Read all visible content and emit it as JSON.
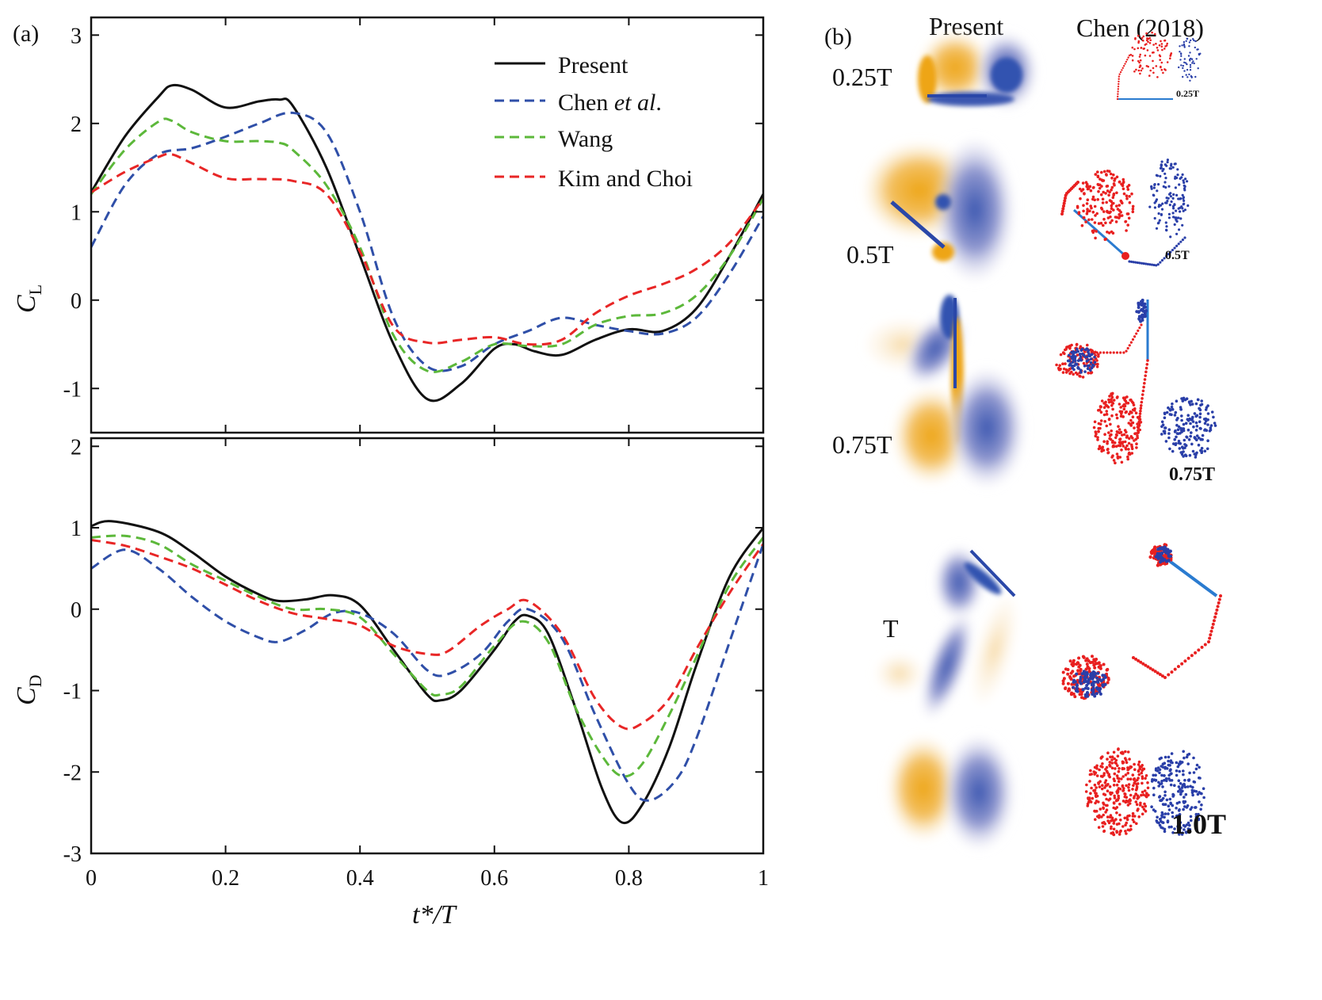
{
  "panel_a_label": "(a)",
  "panel_b_label": "(b)",
  "chart_data": [
    {
      "type": "line",
      "id": "lift",
      "title": "",
      "xlabel": "t*/T",
      "ylabel": "C",
      "ylabel_sub": "L",
      "xlim": [
        0,
        1
      ],
      "ylim": [
        -1.5,
        3.2
      ],
      "yticks": [
        "3",
        "2",
        "1",
        "0",
        "-1"
      ],
      "ytick_values": [
        3,
        2,
        1,
        0,
        -1
      ],
      "xticks": [
        "0",
        "0.2",
        "0.4",
        "0.6",
        "0.8",
        "1"
      ],
      "xtick_values": [
        0,
        0.2,
        0.4,
        0.6,
        0.8,
        1
      ],
      "legend": {
        "placement": "top-right",
        "entries": [
          {
            "name_parts": [
              "Present"
            ]
          },
          {
            "name_parts": [
              "Chen ",
              "et al",
              "."
            ]
          },
          {
            "name_parts": [
              "Wang"
            ]
          },
          {
            "name_parts": [
              "Kim and Choi"
            ]
          }
        ]
      },
      "series": [
        {
          "name": "Present",
          "color": "#111111",
          "dash": "solid",
          "x": [
            0,
            0.05,
            0.1,
            0.12,
            0.15,
            0.2,
            0.25,
            0.28,
            0.3,
            0.35,
            0.4,
            0.45,
            0.5,
            0.55,
            0.6,
            0.63,
            0.66,
            0.7,
            0.75,
            0.8,
            0.85,
            0.9,
            0.95,
            1
          ],
          "y": [
            1.22,
            1.85,
            2.3,
            2.43,
            2.38,
            2.18,
            2.25,
            2.27,
            2.2,
            1.5,
            0.5,
            -0.5,
            -1.12,
            -0.95,
            -0.55,
            -0.5,
            -0.58,
            -0.62,
            -0.45,
            -0.33,
            -0.35,
            -0.1,
            0.5,
            1.2
          ]
        },
        {
          "name": "Chen et al.",
          "color": "#2f4fa8",
          "dash": "dashed",
          "x": [
            0,
            0.05,
            0.1,
            0.15,
            0.2,
            0.25,
            0.3,
            0.35,
            0.4,
            0.45,
            0.5,
            0.55,
            0.6,
            0.65,
            0.7,
            0.75,
            0.8,
            0.85,
            0.9,
            0.95,
            1
          ],
          "y": [
            0.6,
            1.3,
            1.65,
            1.72,
            1.85,
            2.0,
            2.12,
            1.9,
            1.0,
            -0.2,
            -0.75,
            -0.75,
            -0.5,
            -0.35,
            -0.2,
            -0.28,
            -0.35,
            -0.38,
            -0.2,
            0.3,
            0.95
          ]
        },
        {
          "name": "Wang",
          "color": "#5cb83a",
          "dash": "dashed",
          "x": [
            0,
            0.05,
            0.1,
            0.12,
            0.15,
            0.2,
            0.25,
            0.28,
            0.3,
            0.35,
            0.4,
            0.45,
            0.5,
            0.55,
            0.6,
            0.65,
            0.7,
            0.75,
            0.8,
            0.85,
            0.9,
            0.95,
            1
          ],
          "y": [
            1.2,
            1.7,
            2.02,
            2.03,
            1.9,
            1.8,
            1.8,
            1.78,
            1.7,
            1.3,
            0.6,
            -0.4,
            -0.8,
            -0.7,
            -0.5,
            -0.52,
            -0.5,
            -0.28,
            -0.18,
            -0.15,
            0.05,
            0.5,
            1.15
          ]
        },
        {
          "name": "Kim and Choi",
          "color": "#e82626",
          "dash": "dashed",
          "x": [
            0,
            0.05,
            0.1,
            0.12,
            0.15,
            0.2,
            0.25,
            0.3,
            0.35,
            0.4,
            0.45,
            0.5,
            0.55,
            0.6,
            0.65,
            0.7,
            0.75,
            0.8,
            0.85,
            0.9,
            0.95,
            1
          ],
          "y": [
            1.22,
            1.45,
            1.62,
            1.65,
            1.55,
            1.38,
            1.37,
            1.35,
            1.2,
            0.55,
            -0.3,
            -0.48,
            -0.45,
            -0.42,
            -0.5,
            -0.45,
            -0.15,
            0.05,
            0.18,
            0.35,
            0.65,
            1.15
          ]
        }
      ]
    },
    {
      "type": "line",
      "id": "drag",
      "title": "",
      "xlabel": "t*/T",
      "ylabel": "C",
      "ylabel_sub": "D",
      "xlim": [
        0,
        1
      ],
      "ylim": [
        -3,
        2.1
      ],
      "yticks": [
        "2",
        "1",
        "0",
        "-1",
        "-2",
        "-3"
      ],
      "ytick_values": [
        2,
        1,
        0,
        -1,
        -2,
        -3
      ],
      "xticks": [
        "0",
        "0.2",
        "0.4",
        "0.6",
        "0.8",
        "1"
      ],
      "xtick_values": [
        0,
        0.2,
        0.4,
        0.6,
        0.8,
        1
      ],
      "series": [
        {
          "name": "Present",
          "color": "#111111",
          "dash": "solid",
          "x": [
            0,
            0.03,
            0.1,
            0.15,
            0.2,
            0.25,
            0.28,
            0.32,
            0.36,
            0.4,
            0.45,
            0.5,
            0.52,
            0.55,
            0.6,
            0.63,
            0.65,
            0.68,
            0.72,
            0.76,
            0.79,
            0.82,
            0.86,
            0.9,
            0.95,
            1
          ],
          "y": [
            1.02,
            1.08,
            0.95,
            0.7,
            0.4,
            0.18,
            0.1,
            0.12,
            0.17,
            0.05,
            -0.5,
            -1.05,
            -1.12,
            -1.0,
            -0.5,
            -0.15,
            -0.08,
            -0.3,
            -1.2,
            -2.2,
            -2.62,
            -2.4,
            -1.7,
            -0.7,
            0.4,
            1.0
          ]
        },
        {
          "name": "Chen et al.",
          "color": "#2f4fa8",
          "dash": "dashed",
          "x": [
            0,
            0.05,
            0.1,
            0.15,
            0.2,
            0.25,
            0.28,
            0.32,
            0.36,
            0.4,
            0.45,
            0.5,
            0.53,
            0.58,
            0.62,
            0.65,
            0.7,
            0.75,
            0.8,
            0.83,
            0.87,
            0.9,
            0.95,
            1
          ],
          "y": [
            0.5,
            0.73,
            0.5,
            0.15,
            -0.15,
            -0.35,
            -0.4,
            -0.25,
            -0.05,
            -0.05,
            -0.3,
            -0.75,
            -0.8,
            -0.55,
            -0.15,
            0.0,
            -0.35,
            -1.3,
            -2.15,
            -2.35,
            -2.1,
            -1.6,
            -0.4,
            0.8
          ]
        },
        {
          "name": "Wang",
          "color": "#5cb83a",
          "dash": "dashed",
          "x": [
            0,
            0.05,
            0.1,
            0.15,
            0.2,
            0.25,
            0.3,
            0.35,
            0.4,
            0.45,
            0.5,
            0.52,
            0.55,
            0.6,
            0.64,
            0.68,
            0.72,
            0.76,
            0.79,
            0.82,
            0.86,
            0.9,
            0.95,
            1
          ],
          "y": [
            0.88,
            0.9,
            0.8,
            0.55,
            0.35,
            0.15,
            0.0,
            0.0,
            -0.1,
            -0.55,
            -1.0,
            -1.05,
            -0.95,
            -0.45,
            -0.15,
            -0.4,
            -1.2,
            -1.8,
            -2.05,
            -1.9,
            -1.3,
            -0.6,
            0.3,
            0.88
          ]
        },
        {
          "name": "Kim and Choi",
          "color": "#e82626",
          "dash": "dashed",
          "x": [
            0,
            0.05,
            0.1,
            0.15,
            0.2,
            0.25,
            0.3,
            0.35,
            0.4,
            0.45,
            0.5,
            0.53,
            0.58,
            0.62,
            0.65,
            0.7,
            0.75,
            0.79,
            0.82,
            0.86,
            0.9,
            0.95,
            1
          ],
          "y": [
            0.85,
            0.78,
            0.65,
            0.5,
            0.3,
            0.1,
            -0.05,
            -0.12,
            -0.2,
            -0.45,
            -0.55,
            -0.52,
            -0.2,
            0.0,
            0.1,
            -0.3,
            -1.1,
            -1.45,
            -1.4,
            -1.1,
            -0.5,
            0.2,
            0.8
          ]
        }
      ]
    }
  ],
  "panel_b": {
    "col_headers": [
      "Present",
      "Chen (2018)"
    ],
    "row_labels": [
      "0.25T",
      "0.5T",
      "0.75T",
      "T"
    ],
    "chen_labels": [
      "0.25T",
      "0.5T",
      "0.75T",
      "1.0T"
    ],
    "colors": {
      "positive": "#f0ab1e",
      "negative": "#3352b0",
      "plate": "#2a7bd0",
      "particle_red": "#e82020",
      "particle_blue": "#2a3fa8"
    }
  }
}
